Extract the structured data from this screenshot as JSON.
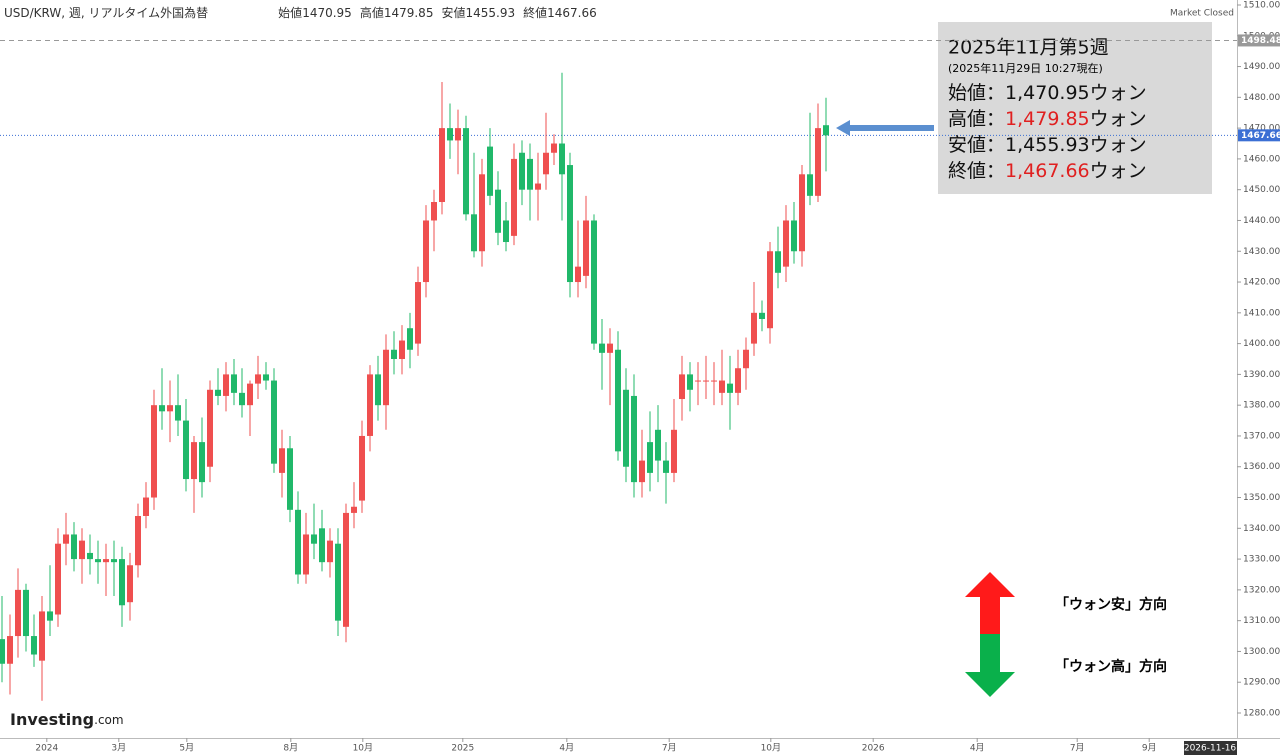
{
  "chart_data": {
    "type": "candlestick",
    "header": {
      "symbol": "USD/KRW, 週, リアルタイム外国為替",
      "fields": [
        {
          "label": "始値",
          "value": "1470.95"
        },
        {
          "label": "高値",
          "value": "1479.85"
        },
        {
          "label": "安値",
          "value": "1455.93"
        },
        {
          "label": "終値",
          "value": "1467.66"
        }
      ],
      "status": "Market Closed"
    },
    "up_color": "#ef4f4f",
    "down_color": "#20b86a",
    "open": [
      1304,
      1296,
      1305,
      1320,
      1305,
      1297,
      1313,
      1312,
      1335,
      1338,
      1330,
      1332,
      1330,
      1329,
      1330,
      1330,
      1316,
      1328,
      1344,
      1350,
      1380,
      1378,
      1380,
      1375,
      1356,
      1368,
      1360,
      1385,
      1383,
      1390,
      1384,
      1380,
      1387,
      1390,
      1388,
      1358,
      1366,
      1346,
      1325,
      1338,
      1340,
      1329,
      1335,
      1308,
      1345,
      1349,
      1370,
      1390,
      1380,
      1398,
      1395,
      1405,
      1400,
      1420,
      1440,
      1446,
      1470,
      1466,
      1470,
      1442,
      1430,
      1464,
      1450,
      1440,
      1435,
      1462,
      1460,
      1450,
      1455,
      1462,
      1465,
      1458,
      1420,
      1422,
      1440,
      1400,
      1397,
      1398,
      1385,
      1383,
      1355,
      1368,
      1372,
      1362,
      1358,
      1382,
      1390,
      1388,
      1388,
      1388,
      1384,
      1387,
      1384,
      1392,
      1400,
      1410,
      1405,
      1430,
      1425,
      1440,
      1430,
      1455,
      1448,
      1470.95
    ],
    "high": [
      1318,
      1312,
      1327,
      1322,
      1312,
      1318,
      1328,
      1340,
      1345,
      1342,
      1340,
      1338,
      1336,
      1335,
      1336,
      1334,
      1332,
      1348,
      1355,
      1385,
      1392,
      1388,
      1390,
      1382,
      1370,
      1376,
      1388,
      1392,
      1394,
      1395,
      1392,
      1388,
      1396,
      1394,
      1392,
      1372,
      1370,
      1352,
      1345,
      1348,
      1346,
      1340,
      1340,
      1348,
      1355,
      1375,
      1393,
      1396,
      1403,
      1404,
      1406,
      1410,
      1425,
      1445,
      1450,
      1485,
      1478,
      1476,
      1474,
      1462,
      1460,
      1470,
      1456,
      1446,
      1465,
      1466,
      1465,
      1462,
      1475,
      1468,
      1488,
      1462,
      1440,
      1448,
      1442,
      1408,
      1405,
      1404,
      1392,
      1390,
      1372,
      1378,
      1380,
      1368,
      1382,
      1396,
      1394,
      1394,
      1396,
      1394,
      1398,
      1396,
      1398,
      1402,
      1420,
      1414,
      1433,
      1438,
      1445,
      1446,
      1458,
      1475,
      1478,
      1479.85
    ],
    "low": [
      1290,
      1286,
      1298,
      1300,
      1295,
      1284,
      1305,
      1308,
      1328,
      1326,
      1322,
      1325,
      1322,
      1318,
      1318,
      1308,
      1310,
      1324,
      1340,
      1346,
      1372,
      1368,
      1370,
      1352,
      1345,
      1350,
      1355,
      1380,
      1378,
      1380,
      1376,
      1370,
      1382,
      1385,
      1358,
      1350,
      1342,
      1322,
      1322,
      1330,
      1326,
      1324,
      1305,
      1303,
      1340,
      1345,
      1365,
      1375,
      1372,
      1390,
      1390,
      1392,
      1396,
      1415,
      1430,
      1442,
      1460,
      1455,
      1440,
      1428,
      1425,
      1445,
      1432,
      1430,
      1432,
      1445,
      1440,
      1440,
      1450,
      1458,
      1440,
      1415,
      1415,
      1418,
      1398,
      1385,
      1380,
      1362,
      1355,
      1350,
      1350,
      1352,
      1355,
      1348,
      1355,
      1375,
      1378,
      1380,
      1382,
      1380,
      1380,
      1372,
      1380,
      1385,
      1396,
      1404,
      1400,
      1418,
      1420,
      1426,
      1425,
      1445,
      1446,
      1455.93
    ],
    "close": [
      1296,
      1305,
      1320,
      1305,
      1299,
      1313,
      1310,
      1335,
      1338,
      1330,
      1336,
      1330,
      1329,
      1330,
      1329,
      1315,
      1328,
      1344,
      1350,
      1380,
      1378,
      1380,
      1375,
      1356,
      1368,
      1355,
      1385,
      1383,
      1390,
      1384,
      1380,
      1387,
      1390,
      1388,
      1361,
      1366,
      1346,
      1325,
      1338,
      1335,
      1329,
      1336,
      1310,
      1345,
      1347,
      1370,
      1390,
      1380,
      1398,
      1395,
      1401,
      1398,
      1420,
      1440,
      1446,
      1470,
      1466,
      1470,
      1442,
      1430,
      1455,
      1448,
      1436,
      1433,
      1460,
      1450,
      1450,
      1452,
      1462,
      1465,
      1455,
      1420,
      1425,
      1440,
      1400,
      1397,
      1400,
      1365,
      1360,
      1355,
      1362,
      1358,
      1362,
      1358,
      1372,
      1390,
      1385,
      1388,
      1388,
      1388,
      1388,
      1384,
      1392,
      1398,
      1410,
      1408,
      1430,
      1423,
      1440,
      1430,
      1455,
      1448,
      1470,
      1467.66
    ],
    "xlim": [
      -0.25,
      154.375
    ],
    "xticks": [
      {
        "value": 5.6,
        "label": "2024"
      },
      {
        "value": 14.6,
        "label": "3月"
      },
      {
        "value": 23.1,
        "label": "5月"
      },
      {
        "value": 36.1,
        "label": "8月"
      },
      {
        "value": 45.1,
        "label": "10月"
      },
      {
        "value": 57.6,
        "label": "2025"
      },
      {
        "value": 70.6,
        "label": "4月"
      },
      {
        "value": 83.4,
        "label": "7月"
      },
      {
        "value": 96.1,
        "label": "10月"
      },
      {
        "value": 108.9,
        "label": "2026"
      },
      {
        "value": 121.9,
        "label": "4月"
      },
      {
        "value": 134.4,
        "label": "7月"
      },
      {
        "value": 143.4,
        "label": "9月"
      }
    ],
    "cursor_date": "2026-11-16",
    "ylim": [
      1274.48,
      1511.62
    ],
    "yticks": [
      {
        "value": 1280,
        "label": "1280.00"
      },
      {
        "value": 1290,
        "label": "1290.00"
      },
      {
        "value": 1300,
        "label": "1300.00"
      },
      {
        "value": 1310,
        "label": "1310.00"
      },
      {
        "value": 1320,
        "label": "1320.00"
      },
      {
        "value": 1330,
        "label": "1330.00"
      },
      {
        "value": 1340,
        "label": "1340.00"
      },
      {
        "value": 1350,
        "label": "1350.00"
      },
      {
        "value": 1360,
        "label": "1360.00"
      },
      {
        "value": 1370,
        "label": "1370.00"
      },
      {
        "value": 1380,
        "label": "1380.00"
      },
      {
        "value": 1390,
        "label": "1390.00"
      },
      {
        "value": 1400,
        "label": "1400.00"
      },
      {
        "value": 1410,
        "label": "1410.00"
      },
      {
        "value": 1420,
        "label": "1420.00"
      },
      {
        "value": 1430,
        "label": "1430.00"
      },
      {
        "value": 1440,
        "label": "1440.00"
      },
      {
        "value": 1450,
        "label": "1450.00"
      },
      {
        "value": 1460,
        "label": "1460.00"
      },
      {
        "value": 1470,
        "label": "1470.00"
      },
      {
        "value": 1480,
        "label": "1480.00"
      },
      {
        "value": 1490,
        "label": "1490.00"
      },
      {
        "value": 1500,
        "label": "1500.00"
      },
      {
        "value": 1510,
        "label": "1510.00"
      }
    ],
    "reference_lines": [
      {
        "value": 1498.48,
        "label": "1498.48",
        "color": "#999999",
        "style": "dashed"
      },
      {
        "value": 1467.66,
        "label": "1467.66",
        "color": "#3b6fd4",
        "style": "dotted"
      }
    ],
    "annotation": {
      "title": "2025年11月第5週",
      "subtitle": "(2025年11月29日 10:27現在)",
      "lines": [
        {
          "label": "始値：",
          "value": "1,470.95",
          "unit": "ウォン",
          "color": "#111111"
        },
        {
          "label": "高値：",
          "value": "1,479.85",
          "unit": "ウォン",
          "color": "#e02020"
        },
        {
          "label": "安値：",
          "value": "1,455.93",
          "unit": "ウォン",
          "color": "#111111"
        },
        {
          "label": "終値：",
          "value": "1,467.66",
          "unit": "ウォン",
          "color": "#e02020"
        }
      ]
    },
    "direction_legend": [
      "「ウォン安」方向",
      "「ウォン高」方向"
    ],
    "logo": {
      "brand": "Investing",
      ".com": ".com"
    }
  }
}
